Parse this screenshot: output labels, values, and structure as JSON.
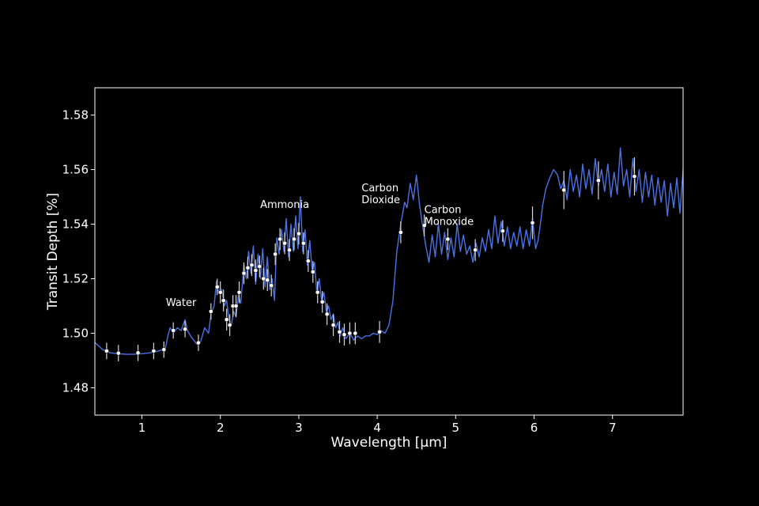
{
  "chart_data": {
    "type": "line",
    "xlabel": "Wavelength [μm]",
    "ylabel": "Transit Depth [%]",
    "xlim": [
      0.4,
      7.9
    ],
    "ylim": [
      1.47,
      1.59
    ],
    "x_ticks": [
      1,
      2,
      3,
      4,
      5,
      6,
      7
    ],
    "y_ticks": [
      1.48,
      1.5,
      1.52,
      1.54,
      1.56,
      1.58
    ],
    "x_tick_labels": [
      "1",
      "2",
      "3",
      "4",
      "5",
      "6",
      "7"
    ],
    "y_tick_labels": [
      "1.48",
      "1.50",
      "1.52",
      "1.54",
      "1.56",
      "1.58"
    ],
    "grid": false,
    "colors": {
      "background": "#000000",
      "model_line": "#4a72e8",
      "error_bar": "#d8d8d8",
      "point_fill": "#ffffff",
      "axes": "#ffffff"
    },
    "annotations": [
      {
        "lines": [
          "Water"
        ],
        "x": 1.5,
        "y": 1.51,
        "anchor": "middle"
      },
      {
        "lines": [
          "Ammonia"
        ],
        "x": 2.82,
        "y": 1.546,
        "anchor": "middle"
      },
      {
        "lines": [
          "Carbon",
          "Dioxide"
        ],
        "x": 3.8,
        "y": 1.552,
        "anchor": "start"
      },
      {
        "lines": [
          "Carbon",
          "Monoxide"
        ],
        "x": 4.6,
        "y": 1.544,
        "anchor": "start"
      }
    ],
    "series": [
      {
        "type": "line",
        "description": "model spectrum",
        "points": [
          [
            0.4,
            1.4966
          ],
          [
            0.5,
            1.494
          ],
          [
            0.6,
            1.4928
          ],
          [
            0.7,
            1.4925
          ],
          [
            0.8,
            1.4923
          ],
          [
            0.9,
            1.4923
          ],
          [
            1.0,
            1.4925
          ],
          [
            1.1,
            1.4928
          ],
          [
            1.2,
            1.4934
          ],
          [
            1.3,
            1.4945
          ],
          [
            1.33,
            1.499
          ],
          [
            1.36,
            1.502
          ],
          [
            1.4,
            1.5
          ],
          [
            1.45,
            1.502
          ],
          [
            1.5,
            1.501
          ],
          [
            1.55,
            1.505
          ],
          [
            1.58,
            1.501
          ],
          [
            1.62,
            1.499
          ],
          [
            1.66,
            1.4975
          ],
          [
            1.7,
            1.496
          ],
          [
            1.75,
            1.497
          ],
          [
            1.8,
            1.502
          ],
          [
            1.85,
            1.5
          ],
          [
            1.88,
            1.507
          ],
          [
            1.92,
            1.51
          ],
          [
            1.95,
            1.519
          ],
          [
            1.98,
            1.515
          ],
          [
            2.02,
            1.516
          ],
          [
            2.05,
            1.51
          ],
          [
            2.08,
            1.512
          ],
          [
            2.11,
            1.505
          ],
          [
            2.14,
            1.503
          ],
          [
            2.17,
            1.508
          ],
          [
            2.2,
            1.506
          ],
          [
            2.23,
            1.514
          ],
          [
            2.26,
            1.511
          ],
          [
            2.3,
            1.525
          ],
          [
            2.33,
            1.52
          ],
          [
            2.36,
            1.53
          ],
          [
            2.39,
            1.522
          ],
          [
            2.42,
            1.532
          ],
          [
            2.45,
            1.518
          ],
          [
            2.48,
            1.529
          ],
          [
            2.51,
            1.52
          ],
          [
            2.54,
            1.531
          ],
          [
            2.57,
            1.517
          ],
          [
            2.6,
            1.528
          ],
          [
            2.63,
            1.516
          ],
          [
            2.66,
            1.52
          ],
          [
            2.69,
            1.512
          ],
          [
            2.72,
            1.535
          ],
          [
            2.75,
            1.529
          ],
          [
            2.78,
            1.538
          ],
          [
            2.81,
            1.53
          ],
          [
            2.84,
            1.542
          ],
          [
            2.87,
            1.528
          ],
          [
            2.9,
            1.54
          ],
          [
            2.93,
            1.53
          ],
          [
            2.96,
            1.543
          ],
          [
            2.99,
            1.531
          ],
          [
            3.02,
            1.55
          ],
          [
            3.05,
            1.53
          ],
          [
            3.08,
            1.538
          ],
          [
            3.11,
            1.525
          ],
          [
            3.14,
            1.534
          ],
          [
            3.17,
            1.523
          ],
          [
            3.2,
            1.526
          ],
          [
            3.23,
            1.515
          ],
          [
            3.26,
            1.52
          ],
          [
            3.29,
            1.512
          ],
          [
            3.32,
            1.515
          ],
          [
            3.35,
            1.508
          ],
          [
            3.38,
            1.51
          ],
          [
            3.41,
            1.505
          ],
          [
            3.44,
            1.507
          ],
          [
            3.47,
            1.502
          ],
          [
            3.5,
            1.504
          ],
          [
            3.53,
            1.499
          ],
          [
            3.56,
            1.502
          ],
          [
            3.6,
            1.498
          ],
          [
            3.65,
            1.5
          ],
          [
            3.7,
            1.4975
          ],
          [
            3.75,
            1.499
          ],
          [
            3.8,
            1.498
          ],
          [
            3.85,
            1.499
          ],
          [
            3.9,
            1.499
          ],
          [
            3.95,
            1.5
          ],
          [
            4.0,
            1.4995
          ],
          [
            4.05,
            1.501
          ],
          [
            4.1,
            1.5
          ],
          [
            4.15,
            1.503
          ],
          [
            4.2,
            1.512
          ],
          [
            4.25,
            1.53
          ],
          [
            4.3,
            1.54
          ],
          [
            4.35,
            1.548
          ],
          [
            4.38,
            1.546
          ],
          [
            4.42,
            1.555
          ],
          [
            4.46,
            1.549
          ],
          [
            4.5,
            1.558
          ],
          [
            4.54,
            1.547
          ],
          [
            4.58,
            1.539
          ],
          [
            4.62,
            1.532
          ],
          [
            4.66,
            1.526
          ],
          [
            4.7,
            1.536
          ],
          [
            4.74,
            1.528
          ],
          [
            4.78,
            1.54
          ],
          [
            4.82,
            1.529
          ],
          [
            4.86,
            1.537
          ],
          [
            4.9,
            1.527
          ],
          [
            4.94,
            1.535
          ],
          [
            4.98,
            1.528
          ],
          [
            5.02,
            1.54
          ],
          [
            5.06,
            1.53
          ],
          [
            5.1,
            1.536
          ],
          [
            5.14,
            1.529
          ],
          [
            5.18,
            1.532
          ],
          [
            5.22,
            1.526
          ],
          [
            5.26,
            1.533
          ],
          [
            5.3,
            1.528
          ],
          [
            5.34,
            1.535
          ],
          [
            5.38,
            1.53
          ],
          [
            5.42,
            1.538
          ],
          [
            5.46,
            1.531
          ],
          [
            5.5,
            1.543
          ],
          [
            5.54,
            1.533
          ],
          [
            5.58,
            1.541
          ],
          [
            5.62,
            1.532
          ],
          [
            5.66,
            1.539
          ],
          [
            5.7,
            1.531
          ],
          [
            5.74,
            1.537
          ],
          [
            5.78,
            1.532
          ],
          [
            5.82,
            1.539
          ],
          [
            5.86,
            1.531
          ],
          [
            5.9,
            1.538
          ],
          [
            5.94,
            1.532
          ],
          [
            5.98,
            1.542
          ],
          [
            6.02,
            1.531
          ],
          [
            6.05,
            1.534
          ],
          [
            6.08,
            1.54
          ],
          [
            6.11,
            1.547
          ],
          [
            6.15,
            1.553
          ],
          [
            6.2,
            1.557
          ],
          [
            6.25,
            1.56
          ],
          [
            6.3,
            1.558
          ],
          [
            6.34,
            1.553
          ],
          [
            6.38,
            1.556
          ],
          [
            6.42,
            1.549
          ],
          [
            6.46,
            1.56
          ],
          [
            6.5,
            1.552
          ],
          [
            6.54,
            1.558
          ],
          [
            6.58,
            1.55
          ],
          [
            6.62,
            1.562
          ],
          [
            6.66,
            1.553
          ],
          [
            6.7,
            1.56
          ],
          [
            6.74,
            1.551
          ],
          [
            6.78,
            1.564
          ],
          [
            6.82,
            1.554
          ],
          [
            6.86,
            1.56
          ],
          [
            6.9,
            1.552
          ],
          [
            6.94,
            1.562
          ],
          [
            6.98,
            1.55
          ],
          [
            7.02,
            1.559
          ],
          [
            7.06,
            1.551
          ],
          [
            7.1,
            1.568
          ],
          [
            7.14,
            1.554
          ],
          [
            7.18,
            1.56
          ],
          [
            7.22,
            1.55
          ],
          [
            7.26,
            1.564
          ],
          [
            7.3,
            1.552
          ],
          [
            7.34,
            1.56
          ],
          [
            7.38,
            1.548
          ],
          [
            7.42,
            1.559
          ],
          [
            7.46,
            1.55
          ],
          [
            7.5,
            1.558
          ],
          [
            7.54,
            1.547
          ],
          [
            7.58,
            1.557
          ],
          [
            7.62,
            1.548
          ],
          [
            7.66,
            1.556
          ],
          [
            7.7,
            1.543
          ],
          [
            7.74,
            1.555
          ],
          [
            7.78,
            1.546
          ],
          [
            7.82,
            1.557
          ],
          [
            7.86,
            1.544
          ],
          [
            7.9,
            1.56
          ]
        ]
      },
      {
        "type": "scatter",
        "description": "observed data with error bars",
        "points": [
          {
            "x": 0.55,
            "y": 1.4935,
            "err": 0.003
          },
          {
            "x": 0.7,
            "y": 1.4927,
            "err": 0.003
          },
          {
            "x": 0.95,
            "y": 1.4928,
            "err": 0.003
          },
          {
            "x": 1.15,
            "y": 1.4935,
            "err": 0.003
          },
          {
            "x": 1.28,
            "y": 1.494,
            "err": 0.003
          },
          {
            "x": 1.4,
            "y": 1.501,
            "err": 0.003
          },
          {
            "x": 1.55,
            "y": 1.5015,
            "err": 0.003
          },
          {
            "x": 1.72,
            "y": 1.4965,
            "err": 0.003
          },
          {
            "x": 1.88,
            "y": 1.508,
            "err": 0.003
          },
          {
            "x": 1.96,
            "y": 1.517,
            "err": 0.003
          },
          {
            "x": 2.0,
            "y": 1.515,
            "err": 0.004
          },
          {
            "x": 2.04,
            "y": 1.512,
            "err": 0.004
          },
          {
            "x": 2.08,
            "y": 1.505,
            "err": 0.004
          },
          {
            "x": 2.12,
            "y": 1.503,
            "err": 0.004
          },
          {
            "x": 2.16,
            "y": 1.51,
            "err": 0.004
          },
          {
            "x": 2.2,
            "y": 1.51,
            "err": 0.004
          },
          {
            "x": 2.24,
            "y": 1.515,
            "err": 0.004
          },
          {
            "x": 2.3,
            "y": 1.522,
            "err": 0.004
          },
          {
            "x": 2.35,
            "y": 1.524,
            "err": 0.004
          },
          {
            "x": 2.4,
            "y": 1.525,
            "err": 0.004
          },
          {
            "x": 2.45,
            "y": 1.523,
            "err": 0.004
          },
          {
            "x": 2.5,
            "y": 1.5245,
            "err": 0.004
          },
          {
            "x": 2.55,
            "y": 1.52,
            "err": 0.004
          },
          {
            "x": 2.6,
            "y": 1.5195,
            "err": 0.004
          },
          {
            "x": 2.65,
            "y": 1.5175,
            "err": 0.004
          },
          {
            "x": 2.7,
            "y": 1.529,
            "err": 0.004
          },
          {
            "x": 2.76,
            "y": 1.5345,
            "err": 0.004
          },
          {
            "x": 2.82,
            "y": 1.533,
            "err": 0.004
          },
          {
            "x": 2.88,
            "y": 1.5305,
            "err": 0.004
          },
          {
            "x": 2.94,
            "y": 1.5345,
            "err": 0.004
          },
          {
            "x": 3.0,
            "y": 1.5365,
            "err": 0.004
          },
          {
            "x": 3.06,
            "y": 1.533,
            "err": 0.004
          },
          {
            "x": 3.12,
            "y": 1.5265,
            "err": 0.004
          },
          {
            "x": 3.18,
            "y": 1.5225,
            "err": 0.004
          },
          {
            "x": 3.24,
            "y": 1.515,
            "err": 0.004
          },
          {
            "x": 3.3,
            "y": 1.5115,
            "err": 0.004
          },
          {
            "x": 3.36,
            "y": 1.507,
            "err": 0.004
          },
          {
            "x": 3.44,
            "y": 1.503,
            "err": 0.004
          },
          {
            "x": 3.52,
            "y": 1.5005,
            "err": 0.004
          },
          {
            "x": 3.58,
            "y": 1.4995,
            "err": 0.004
          },
          {
            "x": 3.65,
            "y": 1.5,
            "err": 0.004
          },
          {
            "x": 3.72,
            "y": 1.5,
            "err": 0.004
          },
          {
            "x": 4.03,
            "y": 1.5005,
            "err": 0.004
          },
          {
            "x": 4.3,
            "y": 1.537,
            "err": 0.004
          },
          {
            "x": 4.6,
            "y": 1.5395,
            "err": 0.004
          },
          {
            "x": 4.9,
            "y": 1.5345,
            "err": 0.004
          },
          {
            "x": 5.25,
            "y": 1.5305,
            "err": 0.004
          },
          {
            "x": 5.6,
            "y": 1.5375,
            "err": 0.004
          },
          {
            "x": 5.98,
            "y": 1.5405,
            "err": 0.006
          },
          {
            "x": 6.38,
            "y": 1.5525,
            "err": 0.007
          },
          {
            "x": 6.82,
            "y": 1.556,
            "err": 0.007
          },
          {
            "x": 7.28,
            "y": 1.5575,
            "err": 0.007
          }
        ]
      }
    ]
  }
}
